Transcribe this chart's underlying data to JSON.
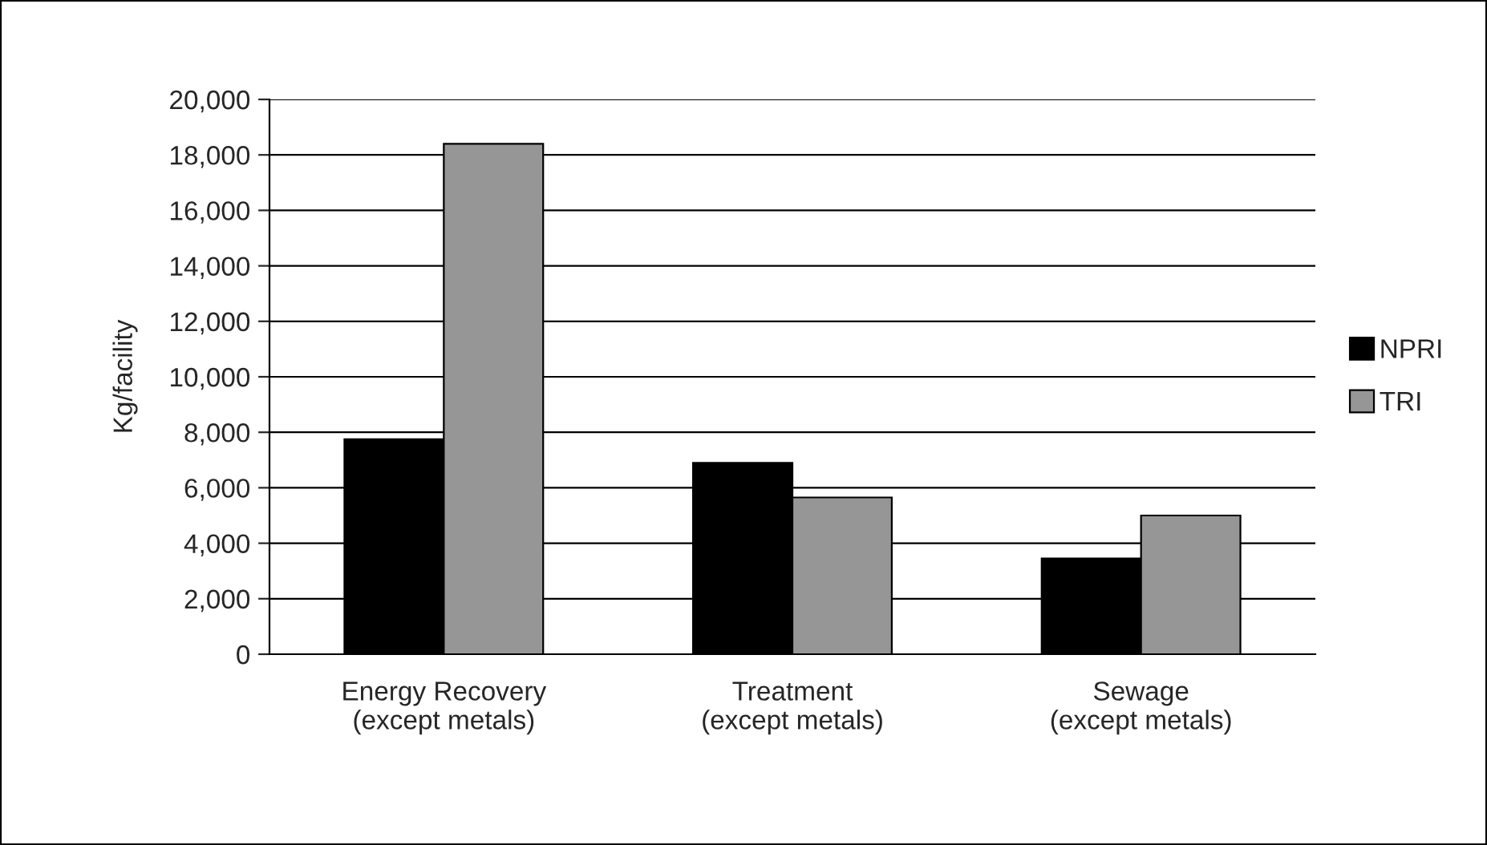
{
  "chart_data": {
    "type": "bar",
    "ylabel": "Kg/facility",
    "categories": [
      "Energy Recovery\n(except metals)",
      "Treatment\n(except metals)",
      "Sewage\n(except metals)"
    ],
    "series": [
      {
        "name": "NPRI",
        "color": "#000000",
        "values": [
          7750,
          6900,
          3450
        ]
      },
      {
        "name": "TRI",
        "color": "#969696",
        "values": [
          18400,
          5650,
          5000
        ]
      }
    ],
    "ylim": [
      0,
      20000
    ],
    "yticks": [
      {
        "value": 0,
        "label": "0"
      },
      {
        "value": 2000,
        "label": "2,000"
      },
      {
        "value": 4000,
        "label": "4,000"
      },
      {
        "value": 6000,
        "label": "6,000"
      },
      {
        "value": 8000,
        "label": "8,000"
      },
      {
        "value": 10000,
        "label": "10,000"
      },
      {
        "value": 12000,
        "label": "12,000"
      },
      {
        "value": 14000,
        "label": "14,000"
      },
      {
        "value": 16000,
        "label": "16,000"
      },
      {
        "value": 18000,
        "label": "18,000"
      },
      {
        "value": 20000,
        "label": "20,000"
      }
    ],
    "grid": "y",
    "legend": "right"
  }
}
